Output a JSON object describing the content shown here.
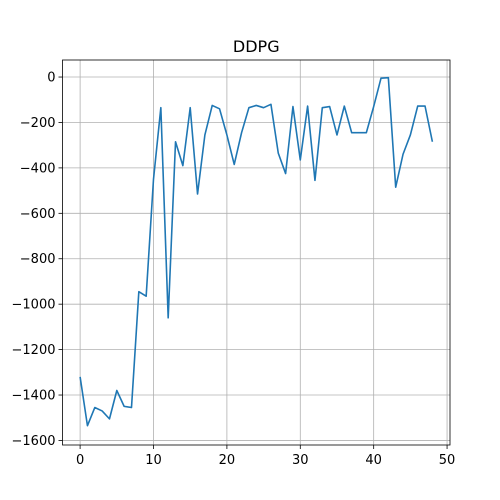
{
  "chart_data": {
    "type": "line",
    "title": "DDPG",
    "xlabel": "",
    "ylabel": "",
    "xlim": [
      -2.4,
      50.4
    ],
    "ylim": [
      -1620,
      75
    ],
    "xticks": [
      0,
      10,
      20,
      30,
      40,
      50
    ],
    "yticks": [
      0,
      -200,
      -400,
      -600,
      -800,
      -1000,
      -1200,
      -1400,
      -1600
    ],
    "xtick_labels": [
      "0",
      "10",
      "20",
      "30",
      "40",
      "50"
    ],
    "ytick_labels": [
      "0",
      "−200",
      "−400",
      "−600",
      "−800",
      "−1000",
      "−1200",
      "−1400",
      "−1600"
    ],
    "grid": true,
    "series": [
      {
        "color": "#1f77b4",
        "x": [
          0,
          1,
          2,
          3,
          4,
          5,
          6,
          7,
          8,
          9,
          10,
          11,
          12,
          13,
          14,
          15,
          16,
          17,
          18,
          19,
          20,
          21,
          22,
          23,
          24,
          25,
          26,
          27,
          28,
          29,
          30,
          31,
          32,
          33,
          34,
          35,
          36,
          37,
          38,
          39,
          40,
          41,
          42,
          43,
          44,
          45,
          46,
          47,
          48
        ],
        "y": [
          -1320,
          -1535,
          -1455,
          -1470,
          -1505,
          -1380,
          -1450,
          -1455,
          -945,
          -965,
          -450,
          -135,
          -1060,
          -285,
          -390,
          -135,
          -515,
          -255,
          -125,
          -140,
          -255,
          -385,
          -245,
          -135,
          -125,
          -135,
          -120,
          -335,
          -425,
          -130,
          -365,
          -128,
          -455,
          -135,
          -130,
          -255,
          -128,
          -245,
          -245,
          -245,
          -130,
          -5,
          -3,
          -485,
          -340,
          -255,
          -128,
          -128,
          -285
        ]
      }
    ]
  }
}
